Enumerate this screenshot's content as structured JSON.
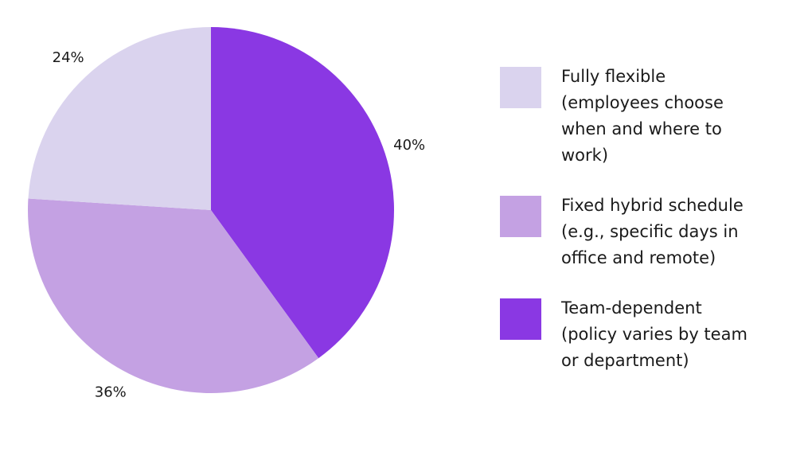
{
  "chart_data": {
    "type": "pie",
    "title": "",
    "legend_position": "right",
    "start_angle_deg": 0,
    "direction": "clockwise",
    "slices": [
      {
        "label": "Team-dependent (policy varies by team or department)",
        "value": 40,
        "value_label": "40%",
        "color": "#8a38e3"
      },
      {
        "label": "Fixed hybrid schedule (e.g., specific days in office and remote)",
        "value": 36,
        "value_label": "36%",
        "color": "#c4a1e3"
      },
      {
        "label": "Fully flexible (employees choose when and where to work)",
        "value": 24,
        "value_label": "24%",
        "color": "#dad3ee"
      }
    ]
  },
  "legend": [
    {
      "label": "Fully flexible (employees choose when and where to work)",
      "color": "#dad3ee"
    },
    {
      "label": "Fixed hybrid schedule (e.g., specific days in office and remote)",
      "color": "#c4a1e3"
    },
    {
      "label": "Team-dependent (policy varies by team or department)",
      "color": "#8a38e3"
    }
  ]
}
